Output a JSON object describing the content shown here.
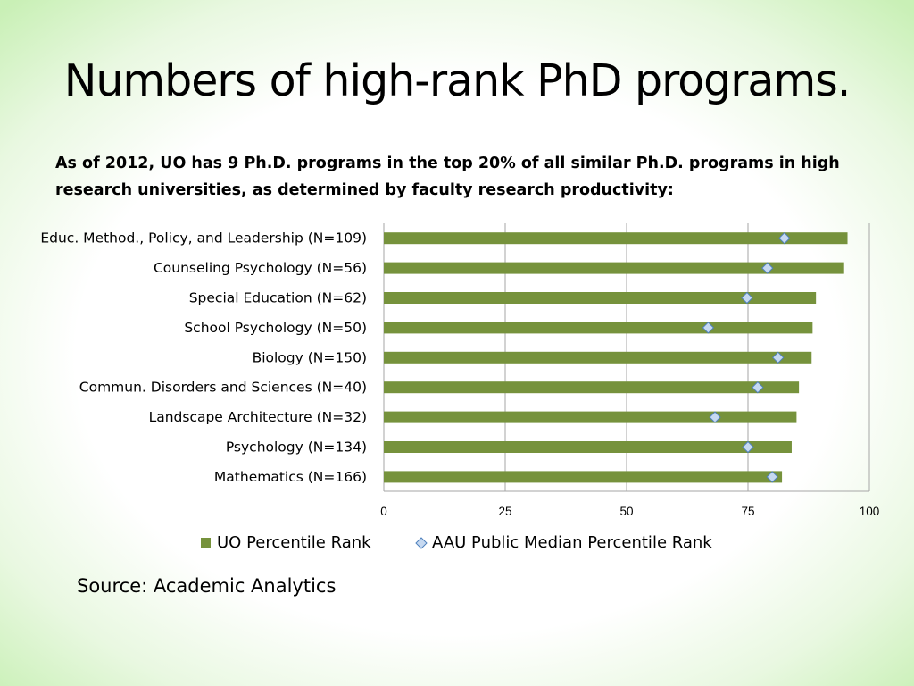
{
  "slide": {
    "title": "Numbers of high-rank PhD programs.",
    "subtitle": "As of 2012, UO has 9 Ph.D. programs in the top 20% of all similar Ph.D. programs in high research universities, as determined by faculty research productivity:",
    "source": "Source:  Academic Analytics"
  },
  "colors": {
    "bar": "#76923c",
    "marker_fill": "#c6d9f1",
    "marker_stroke": "#4f81bd",
    "grid": "#a6a6a6"
  },
  "chart_data": {
    "type": "bar",
    "orientation": "horizontal",
    "categories": [
      "Educ. Method., Policy, and Leadership (N=109)",
      "Counseling Psychology (N=56)",
      "Special Education (N=62)",
      "School Psychology (N=50)",
      "Biology (N=150)",
      "Commun. Disorders and Sciences (N=40)",
      "Landscape Architecture (N=32)",
      "Psychology (N=134)",
      "Mathematics (N=166)"
    ],
    "series": [
      {
        "name": "UO Percentile Rank",
        "kind": "bar",
        "values": [
          95.5,
          94.8,
          89,
          88.3,
          88.1,
          85.5,
          85,
          84,
          82
        ]
      },
      {
        "name": "AAU Public Median Percentile Rank",
        "kind": "marker",
        "values": [
          82.5,
          79,
          74.8,
          66.8,
          81.2,
          77,
          68.2,
          75,
          80
        ]
      }
    ],
    "xlim": [
      0,
      100
    ],
    "xticks": [
      0,
      25,
      50,
      75,
      100
    ],
    "grid": true,
    "legend_position": "bottom"
  }
}
